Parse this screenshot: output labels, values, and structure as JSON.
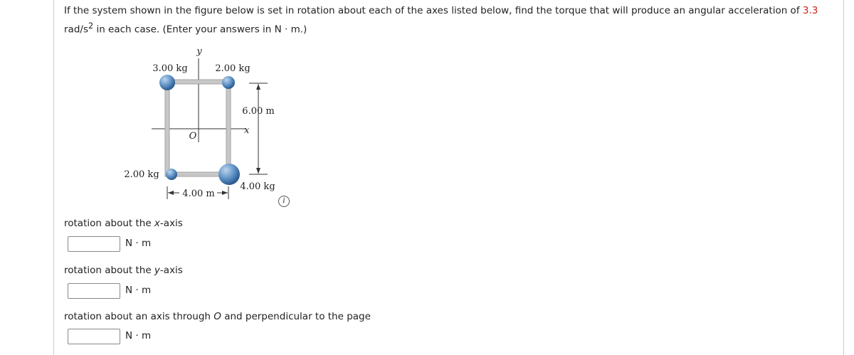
{
  "question": {
    "text_before": "If the system shown in the figure below is set in rotation about each of the axes listed below, find the torque that will produce an angular acceleration of ",
    "value": 3.3,
    "unit": "rad/s",
    "exponent": "2",
    "text_after": " in each case. (Enter your answers in N · m.)"
  },
  "figure": {
    "y_label": "y",
    "x_label": "x",
    "origin_label": "O",
    "mass_top_left": "3.00 kg",
    "mass_top_right": "2.00 kg",
    "mass_bottom_left": "2.00 kg",
    "mass_bottom_right": "4.00 kg",
    "height_label": "6.00 m",
    "width_label": "4.00 m",
    "info_icon": "i"
  },
  "parts": [
    {
      "prefix": "rotation about the ",
      "var": "x",
      "suffix": "-axis",
      "unit": "N · m"
    },
    {
      "prefix": "rotation about the ",
      "var": "y",
      "suffix": "-axis",
      "unit": "N · m"
    },
    {
      "prefix": "rotation about an axis through ",
      "var": "O",
      "suffix": " and perpendicular to the page",
      "unit": "N · m"
    }
  ]
}
